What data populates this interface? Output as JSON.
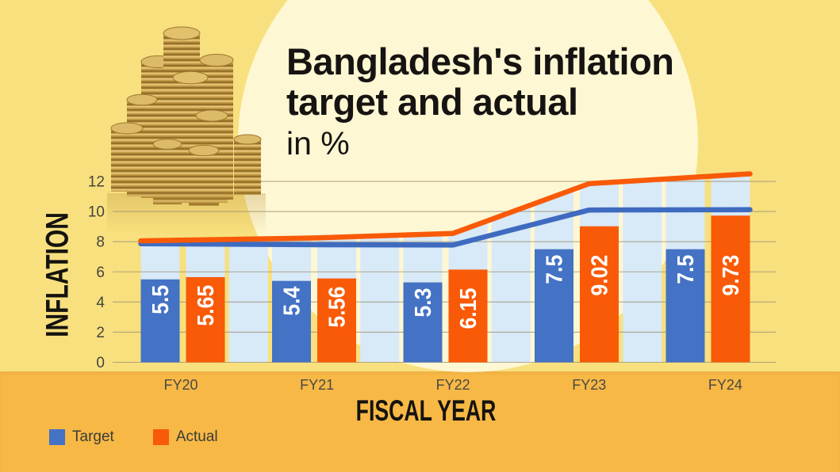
{
  "title": {
    "line1": "Bangladesh's inflation",
    "line2": "target and actual",
    "line3": "in %"
  },
  "chart_data": {
    "type": "bar",
    "title": "Bangladesh's inflation target and actual in %",
    "categories": [
      "FY20",
      "FY21",
      "FY22",
      "FY23",
      "FY24"
    ],
    "series": [
      {
        "name": "Target",
        "type": "bar",
        "color": "#4472C4",
        "values": [
          5.5,
          5.4,
          5.3,
          7.5,
          7.5
        ],
        "labels": [
          "5.5",
          "5.4",
          "5.3",
          "7.5",
          "7.5"
        ]
      },
      {
        "name": "Actual",
        "type": "bar",
        "color": "#F95A07",
        "values": [
          5.65,
          5.56,
          6.15,
          9.02,
          9.73
        ],
        "labels": [
          "5.65",
          "5.56",
          "6.15",
          "9.02",
          "9.73"
        ]
      },
      {
        "name": "Target trend line",
        "type": "line",
        "color": "#3E6BC0",
        "values": [
          7.85,
          7.8,
          7.78,
          10.1,
          10.12
        ]
      },
      {
        "name": "Actual trend line",
        "type": "line",
        "color": "#F95A07",
        "values": [
          8.1,
          8.25,
          8.55,
          11.85,
          12.4
        ]
      }
    ],
    "xlabel": "FISCAL YEAR",
    "ylabel": "INFLATION",
    "yticks": [
      0,
      2,
      4,
      6,
      8,
      10,
      12
    ],
    "ylim": [
      0,
      12
    ],
    "grid": true,
    "legend_position": "bottom-left",
    "stripe_color": "#D8E9F7"
  },
  "legend": {
    "items": [
      {
        "label": "Target",
        "color": "#4472C4"
      },
      {
        "label": "Actual",
        "color": "#F95A07"
      }
    ]
  },
  "colors": {
    "background": "#F8E07E",
    "band": "#F7B846",
    "circle": "rgba(254,249,223,0.88)",
    "gridline": "#9E9478",
    "axis_text": "#45443E",
    "x_text": "#4A4942",
    "title_text": "#161412",
    "bar_label_text": "#FFFFFF",
    "coin_gold": "#C79D46"
  }
}
